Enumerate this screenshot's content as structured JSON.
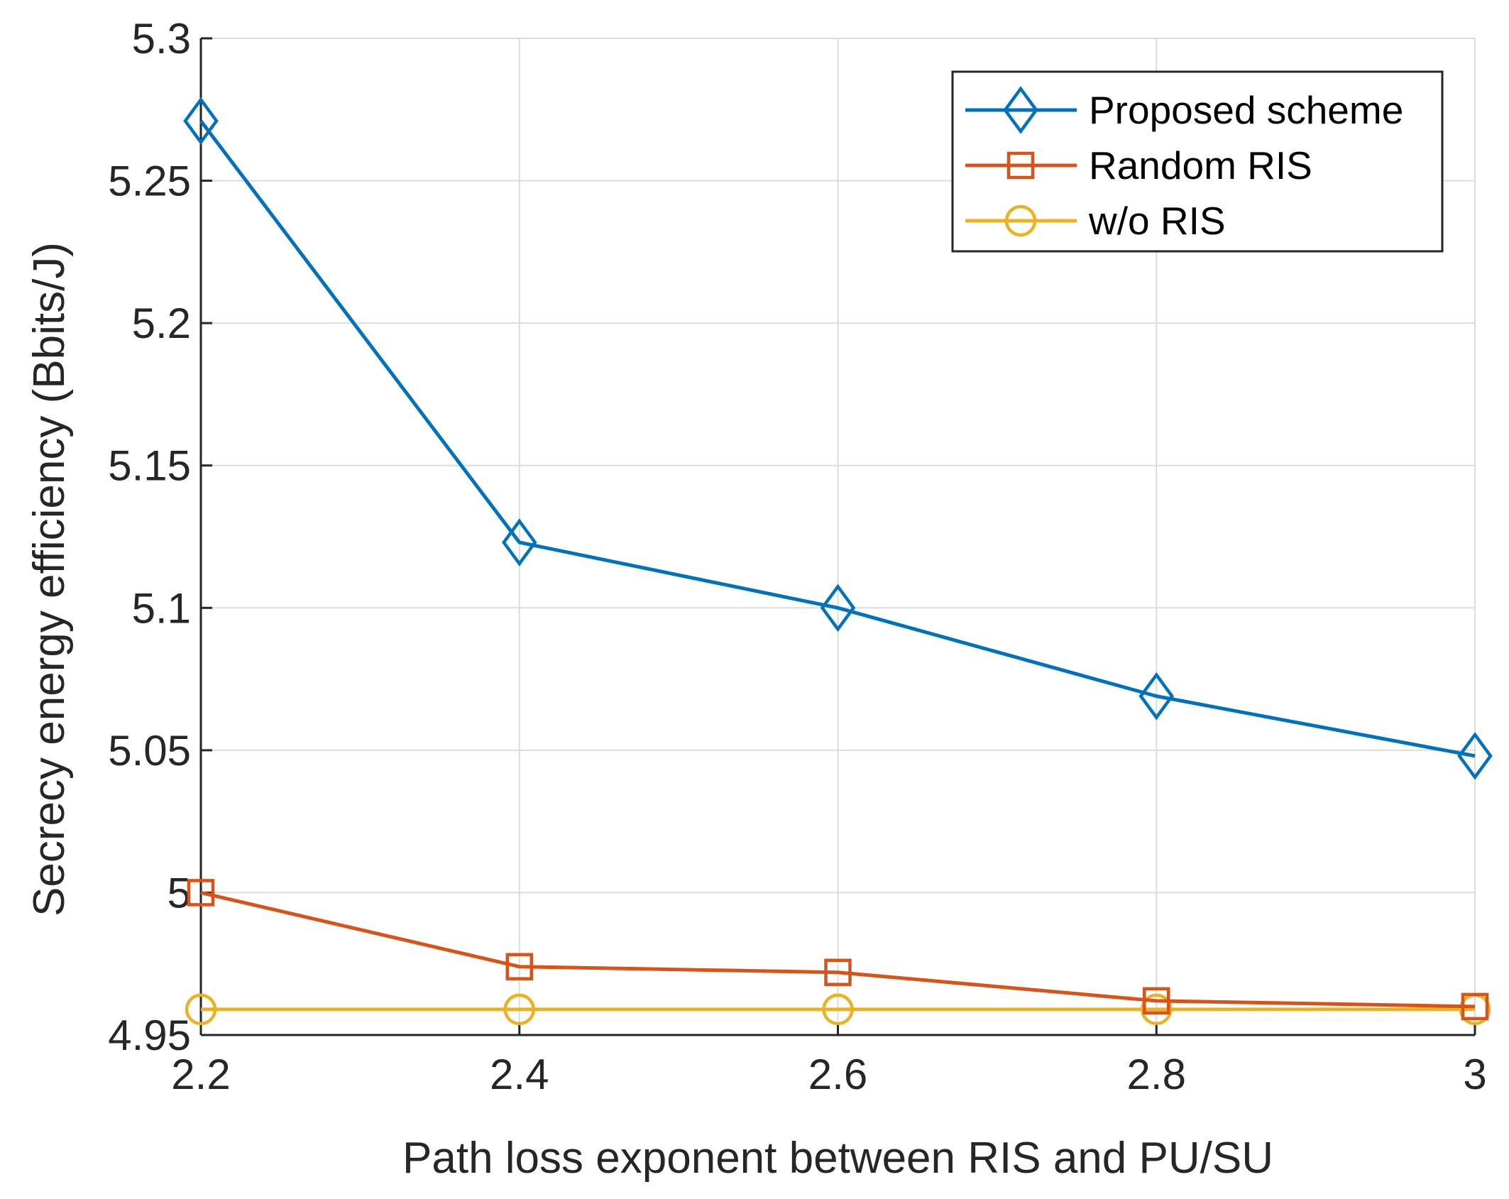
{
  "chart_data": {
    "type": "line",
    "title": "",
    "xlabel": "Path loss exponent between RIS and PU/SU",
    "ylabel": "Secrecy energy efficiency (Bbits/J)",
    "x": [
      2.2,
      2.4,
      2.6,
      2.8,
      3.0
    ],
    "xlim": [
      2.2,
      3.0
    ],
    "ylim": [
      4.95,
      5.3
    ],
    "xticks": [
      2.2,
      2.4,
      2.6,
      2.8,
      3.0
    ],
    "xtick_labels": [
      "2.2",
      "2.4",
      "2.6",
      "2.8",
      "3"
    ],
    "yticks": [
      4.95,
      5.0,
      5.05,
      5.1,
      5.15,
      5.2,
      5.25,
      5.3
    ],
    "ytick_labels": [
      "4.95",
      "5",
      "5.05",
      "5.1",
      "5.15",
      "5.2",
      "5.25",
      "5.3"
    ],
    "grid": true,
    "legend_position": "top-right",
    "series": [
      {
        "name": "Proposed scheme",
        "color": "#0072BD",
        "marker": "diamond",
        "values": [
          5.271,
          5.123,
          5.1,
          5.069,
          5.048
        ]
      },
      {
        "name": "Random RIS",
        "color": "#D95319",
        "marker": "square",
        "values": [
          5.0,
          4.974,
          4.972,
          4.962,
          4.96
        ]
      },
      {
        "name": "w/o RIS",
        "color": "#EDB120",
        "marker": "circle",
        "values": [
          4.959,
          4.959,
          4.959,
          4.959,
          4.959
        ]
      }
    ]
  }
}
